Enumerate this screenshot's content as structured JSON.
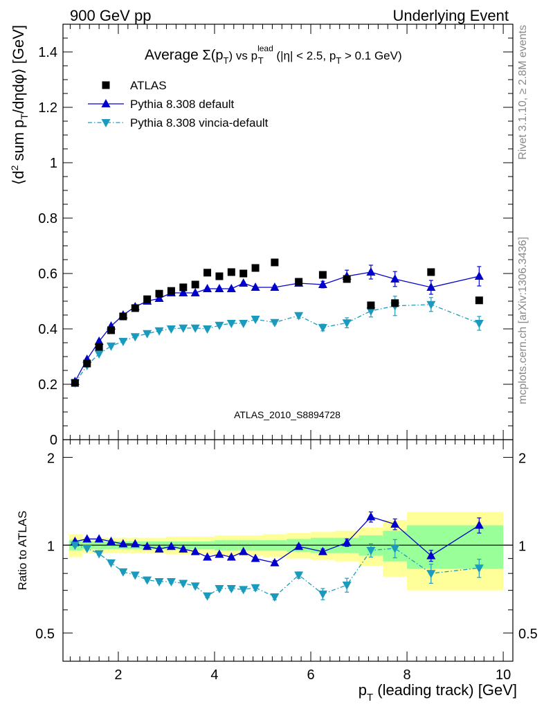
{
  "header": {
    "left": "900 GeV pp",
    "right": "Underlying Event"
  },
  "side": {
    "rivet": "Rivet 3.1.10,  ≥ 2.8M events",
    "mcplots": "mcplots.cern.ch [arXiv:1306.3436]"
  },
  "watermark": "ATLAS_2010_S8894728",
  "chart_data": [
    {
      "type": "scatter",
      "title": "Average Σ(pT) vs pT^lead (|η| < 2.5, pT > 0.1 GeV)",
      "title_parts": {
        "prefix": "Average",
        "sigma": "Σ(p",
        "sub_t1": "T",
        "mid": ") vs p",
        "sup_lead": "lead",
        "sub_t2": "T",
        "rest": " (|η| < 2.5, p",
        "sub_t3": "T",
        "end": " > 0.1 GeV)"
      },
      "ylabel": "⟨d² sum pT/dηdφ⟩ [GeV]",
      "ylabel_parts": {
        "a": "⟨d",
        "sup2": "2",
        "b": " sum p",
        "subT": "T",
        "c": "/dηdφ⟩ [GeV]"
      },
      "xlim": [
        0.85,
        10.2
      ],
      "ylim": [
        0,
        1.5
      ],
      "y_ticks": [
        0,
        0.2,
        0.4,
        0.6,
        0.8,
        1,
        1.2,
        1.4
      ],
      "y_tick_labels": [
        "0",
        "0.2",
        "0.4",
        "0.6",
        "0.8",
        "1",
        "1.2",
        "1.4"
      ],
      "legend_position": "top-left",
      "series": [
        {
          "name": "ATLAS",
          "color": "#000000",
          "marker": "square",
          "x": [
            1.1,
            1.35,
            1.6,
            1.85,
            2.1,
            2.35,
            2.6,
            2.85,
            3.1,
            3.35,
            3.6,
            3.85,
            4.1,
            4.35,
            4.6,
            4.85,
            5.25,
            5.75,
            6.25,
            6.75,
            7.25,
            7.75,
            8.5,
            9.5
          ],
          "y": [
            0.205,
            0.275,
            0.335,
            0.395,
            0.445,
            0.475,
            0.507,
            0.527,
            0.537,
            0.55,
            0.56,
            0.603,
            0.59,
            0.605,
            0.6,
            0.62,
            0.64,
            0.57,
            0.595,
            0.58,
            0.485,
            0.493,
            0.605,
            0.503
          ]
        },
        {
          "name": "Pythia 8.308 default",
          "color": "#0000cc",
          "marker": "triangle-up",
          "x": [
            1.1,
            1.35,
            1.6,
            1.85,
            2.1,
            2.35,
            2.6,
            2.85,
            3.1,
            3.35,
            3.6,
            3.85,
            4.1,
            4.35,
            4.6,
            4.85,
            5.25,
            5.75,
            6.25,
            6.75,
            7.25,
            7.75,
            8.5,
            9.5
          ],
          "y": [
            0.21,
            0.29,
            0.355,
            0.41,
            0.45,
            0.48,
            0.5,
            0.51,
            0.53,
            0.53,
            0.53,
            0.545,
            0.545,
            0.545,
            0.565,
            0.55,
            0.55,
            0.565,
            0.56,
            0.59,
            0.605,
            0.58,
            0.55,
            0.59
          ],
          "yerr": [
            0.004,
            0.004,
            0.004,
            0.004,
            0.004,
            0.004,
            0.004,
            0.004,
            0.004,
            0.004,
            0.004,
            0.004,
            0.004,
            0.004,
            0.004,
            0.004,
            0.006,
            0.008,
            0.012,
            0.022,
            0.025,
            0.027,
            0.025,
            0.035
          ]
        },
        {
          "name": "Pythia 8.308 vincia-default",
          "color": "#1a9bbd",
          "marker": "triangle-down",
          "x": [
            1.1,
            1.35,
            1.6,
            1.85,
            2.1,
            2.35,
            2.6,
            2.85,
            3.1,
            3.35,
            3.6,
            3.85,
            4.1,
            4.35,
            4.6,
            4.85,
            5.25,
            5.75,
            6.25,
            6.75,
            7.25,
            7.75,
            8.5,
            9.5
          ],
          "y": [
            0.205,
            0.268,
            0.31,
            0.338,
            0.355,
            0.372,
            0.383,
            0.393,
            0.4,
            0.403,
            0.403,
            0.4,
            0.413,
            0.42,
            0.42,
            0.435,
            0.423,
            0.448,
            0.405,
            0.422,
            0.465,
            0.483,
            0.488,
            0.42
          ],
          "yerr": [
            0.004,
            0.004,
            0.004,
            0.004,
            0.004,
            0.004,
            0.004,
            0.004,
            0.004,
            0.004,
            0.004,
            0.004,
            0.004,
            0.004,
            0.004,
            0.005,
            0.006,
            0.01,
            0.012,
            0.018,
            0.022,
            0.035,
            0.025,
            0.025
          ]
        }
      ]
    },
    {
      "type": "scatter",
      "ylabel": "Ratio to ATLAS",
      "xlabel": "pT (leading track) [GeV]",
      "xlabel_parts": {
        "a": "p",
        "subT": "T",
        "b": " (leading track) [GeV]"
      },
      "xlim": [
        0.85,
        10.2
      ],
      "ylim": [
        0.4,
        2.3
      ],
      "y_scale": "log",
      "y_ticks": [
        0.5,
        1,
        2
      ],
      "y_tick_labels": [
        "0.5",
        "1",
        "2"
      ],
      "x_ticks": [
        2,
        4,
        6,
        8,
        10
      ],
      "x_tick_labels": [
        "2",
        "4",
        "6",
        "8",
        "10"
      ],
      "uncertainty_bands": {
        "bins": [
          [
            0.98,
            1.25
          ],
          [
            1.25,
            1.5
          ],
          [
            1.5,
            1.75
          ],
          [
            1.75,
            2.0
          ],
          [
            2.0,
            2.25
          ],
          [
            2.25,
            2.5
          ],
          [
            2.5,
            2.75
          ],
          [
            2.75,
            3.0
          ],
          [
            3.0,
            3.25
          ],
          [
            3.25,
            3.5
          ],
          [
            3.5,
            3.75
          ],
          [
            3.75,
            4.0
          ],
          [
            4.0,
            4.25
          ],
          [
            4.25,
            4.5
          ],
          [
            4.5,
            4.75
          ],
          [
            4.75,
            5.0
          ],
          [
            5.0,
            5.5
          ],
          [
            5.5,
            6.0
          ],
          [
            6.0,
            6.5
          ],
          [
            6.5,
            7.0
          ],
          [
            7.0,
            7.5
          ],
          [
            7.5,
            8.0
          ],
          [
            8.0,
            9.0
          ],
          [
            9.0,
            10.0
          ]
        ],
        "outer": [
          0.09,
          0.06,
          0.06,
          0.06,
          0.06,
          0.06,
          0.06,
          0.06,
          0.07,
          0.07,
          0.07,
          0.07,
          0.08,
          0.08,
          0.08,
          0.08,
          0.09,
          0.1,
          0.11,
          0.12,
          0.15,
          0.22,
          0.3,
          0.3
        ],
        "inner": [
          0.04,
          0.03,
          0.03,
          0.03,
          0.03,
          0.03,
          0.03,
          0.03,
          0.03,
          0.03,
          0.03,
          0.03,
          0.04,
          0.04,
          0.04,
          0.04,
          0.04,
          0.05,
          0.06,
          0.06,
          0.08,
          0.12,
          0.17,
          0.17
        ],
        "outer_color": "#ffff99",
        "inner_color": "#99ff99"
      },
      "series": [
        {
          "name": "Pythia 8.308 default",
          "color": "#0000cc",
          "marker": "triangle-up",
          "x": [
            1.1,
            1.35,
            1.6,
            1.85,
            2.1,
            2.35,
            2.6,
            2.85,
            3.1,
            3.35,
            3.6,
            3.85,
            4.1,
            4.35,
            4.6,
            4.85,
            5.25,
            5.75,
            6.25,
            6.75,
            7.25,
            7.75,
            8.5,
            9.5
          ],
          "y": [
            1.03,
            1.05,
            1.05,
            1.03,
            1.01,
            1.01,
            0.99,
            0.97,
            0.99,
            0.97,
            0.95,
            0.91,
            0.93,
            0.91,
            0.95,
            0.9,
            0.87,
            0.99,
            0.95,
            1.02,
            1.25,
            1.18,
            0.92,
            1.17
          ],
          "yerr": [
            0.01,
            0.01,
            0.01,
            0.01,
            0.01,
            0.01,
            0.01,
            0.01,
            0.01,
            0.01,
            0.01,
            0.01,
            0.01,
            0.01,
            0.01,
            0.01,
            0.015,
            0.015,
            0.02,
            0.03,
            0.05,
            0.05,
            0.04,
            0.07
          ]
        },
        {
          "name": "Pythia 8.308 vincia-default",
          "color": "#1a9bbd",
          "marker": "triangle-down",
          "x": [
            1.1,
            1.35,
            1.6,
            1.85,
            2.1,
            2.35,
            2.6,
            2.85,
            3.1,
            3.35,
            3.6,
            3.85,
            4.1,
            4.35,
            4.6,
            4.85,
            5.25,
            5.75,
            6.25,
            6.75,
            7.25,
            7.75,
            8.5,
            9.5
          ],
          "y": [
            1.0,
            0.975,
            0.935,
            0.87,
            0.81,
            0.79,
            0.76,
            0.75,
            0.75,
            0.74,
            0.725,
            0.67,
            0.71,
            0.71,
            0.705,
            0.715,
            0.665,
            0.79,
            0.68,
            0.73,
            0.96,
            0.975,
            0.8,
            0.835
          ],
          "yerr": [
            0.01,
            0.01,
            0.01,
            0.01,
            0.01,
            0.01,
            0.01,
            0.01,
            0.01,
            0.01,
            0.01,
            0.01,
            0.01,
            0.01,
            0.01,
            0.015,
            0.015,
            0.02,
            0.03,
            0.04,
            0.05,
            0.07,
            0.06,
            0.06
          ]
        }
      ]
    }
  ]
}
